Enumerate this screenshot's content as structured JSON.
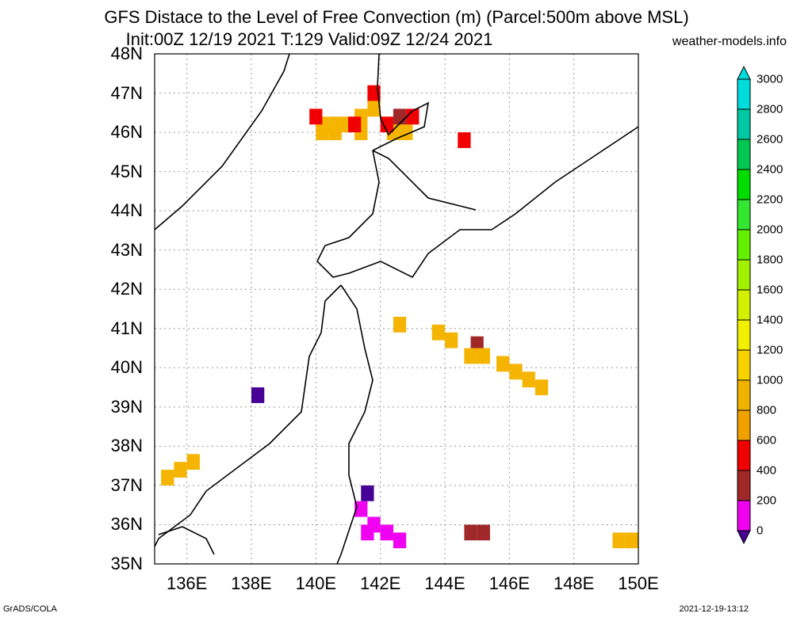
{
  "header": {
    "title_line1": "GFS Distace to the Level of Free Convection (m) (Parcel:500m above MSL)",
    "title_line2": "Init:00Z 12/19 2021 T:129 Valid:09Z 12/24 2021",
    "site": "weather-models.info"
  },
  "axes": {
    "lat_labels": [
      "48N",
      "47N",
      "46N",
      "45N",
      "44N",
      "43N",
      "42N",
      "41N",
      "40N",
      "39N",
      "38N",
      "37N",
      "36N",
      "35N"
    ],
    "lon_labels": [
      "136E",
      "138E",
      "140E",
      "142E",
      "144E",
      "146E",
      "148E",
      "150E"
    ]
  },
  "colorbar": {
    "labels": [
      "3000",
      "2800",
      "2600",
      "2400",
      "2200",
      "2000",
      "1800",
      "1600",
      "1400",
      "1200",
      "1000",
      "800",
      "600",
      "400",
      "200",
      "0"
    ],
    "colors": [
      "#00dcdc",
      "#00c8a0",
      "#00c850",
      "#00dc00",
      "#32e632",
      "#64f000",
      "#a0f000",
      "#d2f000",
      "#f0f000",
      "#f5d200",
      "#f0b400",
      "#f0a000",
      "#f00000",
      "#a02828",
      "#f000f0",
      "#460096"
    ]
  },
  "footer": {
    "left": "GrADS/COLA",
    "right": "2021-12-19-13:12"
  },
  "patches": [
    {
      "name": "sakhalin-south",
      "color": "#f5b400",
      "cells": [
        [
          140,
          46.0
        ],
        [
          140.4,
          46.0
        ],
        [
          140.8,
          46.0
        ],
        [
          141.2,
          46.2
        ],
        [
          141.6,
          46.4
        ],
        [
          140,
          45.8
        ],
        [
          140.4,
          45.8
        ],
        [
          141.2,
          45.8
        ],
        [
          142.2,
          45.8
        ],
        [
          142.6,
          45.8
        ]
      ]
    },
    {
      "name": "sakhalin-red",
      "color": "#f00000",
      "cells": [
        [
          139.8,
          46.2
        ],
        [
          141.0,
          46.0
        ],
        [
          141.6,
          46.8
        ],
        [
          142.0,
          46.0
        ],
        [
          142.8,
          46.2
        ],
        [
          144.4,
          45.6
        ]
      ]
    },
    {
      "name": "brown",
      "color": "#a02828",
      "cells": [
        [
          142.4,
          46.2
        ],
        [
          144.8,
          40.4
        ],
        [
          144.6,
          35.6
        ],
        [
          145.0,
          35.6
        ]
      ]
    },
    {
      "name": "pacific-band",
      "color": "#f5b400",
      "cells": [
        [
          142.4,
          40.9
        ],
        [
          143.6,
          40.7
        ],
        [
          144.0,
          40.5
        ],
        [
          144.6,
          40.1
        ],
        [
          145.0,
          40.1
        ],
        [
          145.6,
          39.9
        ],
        [
          146.0,
          39.7
        ],
        [
          146.4,
          39.5
        ],
        [
          146.8,
          39.3
        ]
      ]
    },
    {
      "name": "magenta",
      "color": "#f000f0",
      "cells": [
        [
          141.2,
          36.2
        ],
        [
          141.6,
          35.8
        ],
        [
          142.0,
          35.6
        ],
        [
          141.4,
          35.6
        ],
        [
          142.4,
          35.4
        ]
      ]
    },
    {
      "name": "purple",
      "color": "#460096",
      "cells": [
        [
          138.0,
          39.1
        ],
        [
          141.4,
          36.6
        ]
      ]
    },
    {
      "name": "west",
      "color": "#f5b400",
      "cells": [
        [
          135.2,
          37.0
        ],
        [
          135.6,
          37.2
        ],
        [
          136.0,
          37.4
        ]
      ]
    },
    {
      "name": "east",
      "color": "#f5b400",
      "cells": [
        [
          149.2,
          35.4
        ],
        [
          149.6,
          35.4
        ]
      ]
    }
  ]
}
